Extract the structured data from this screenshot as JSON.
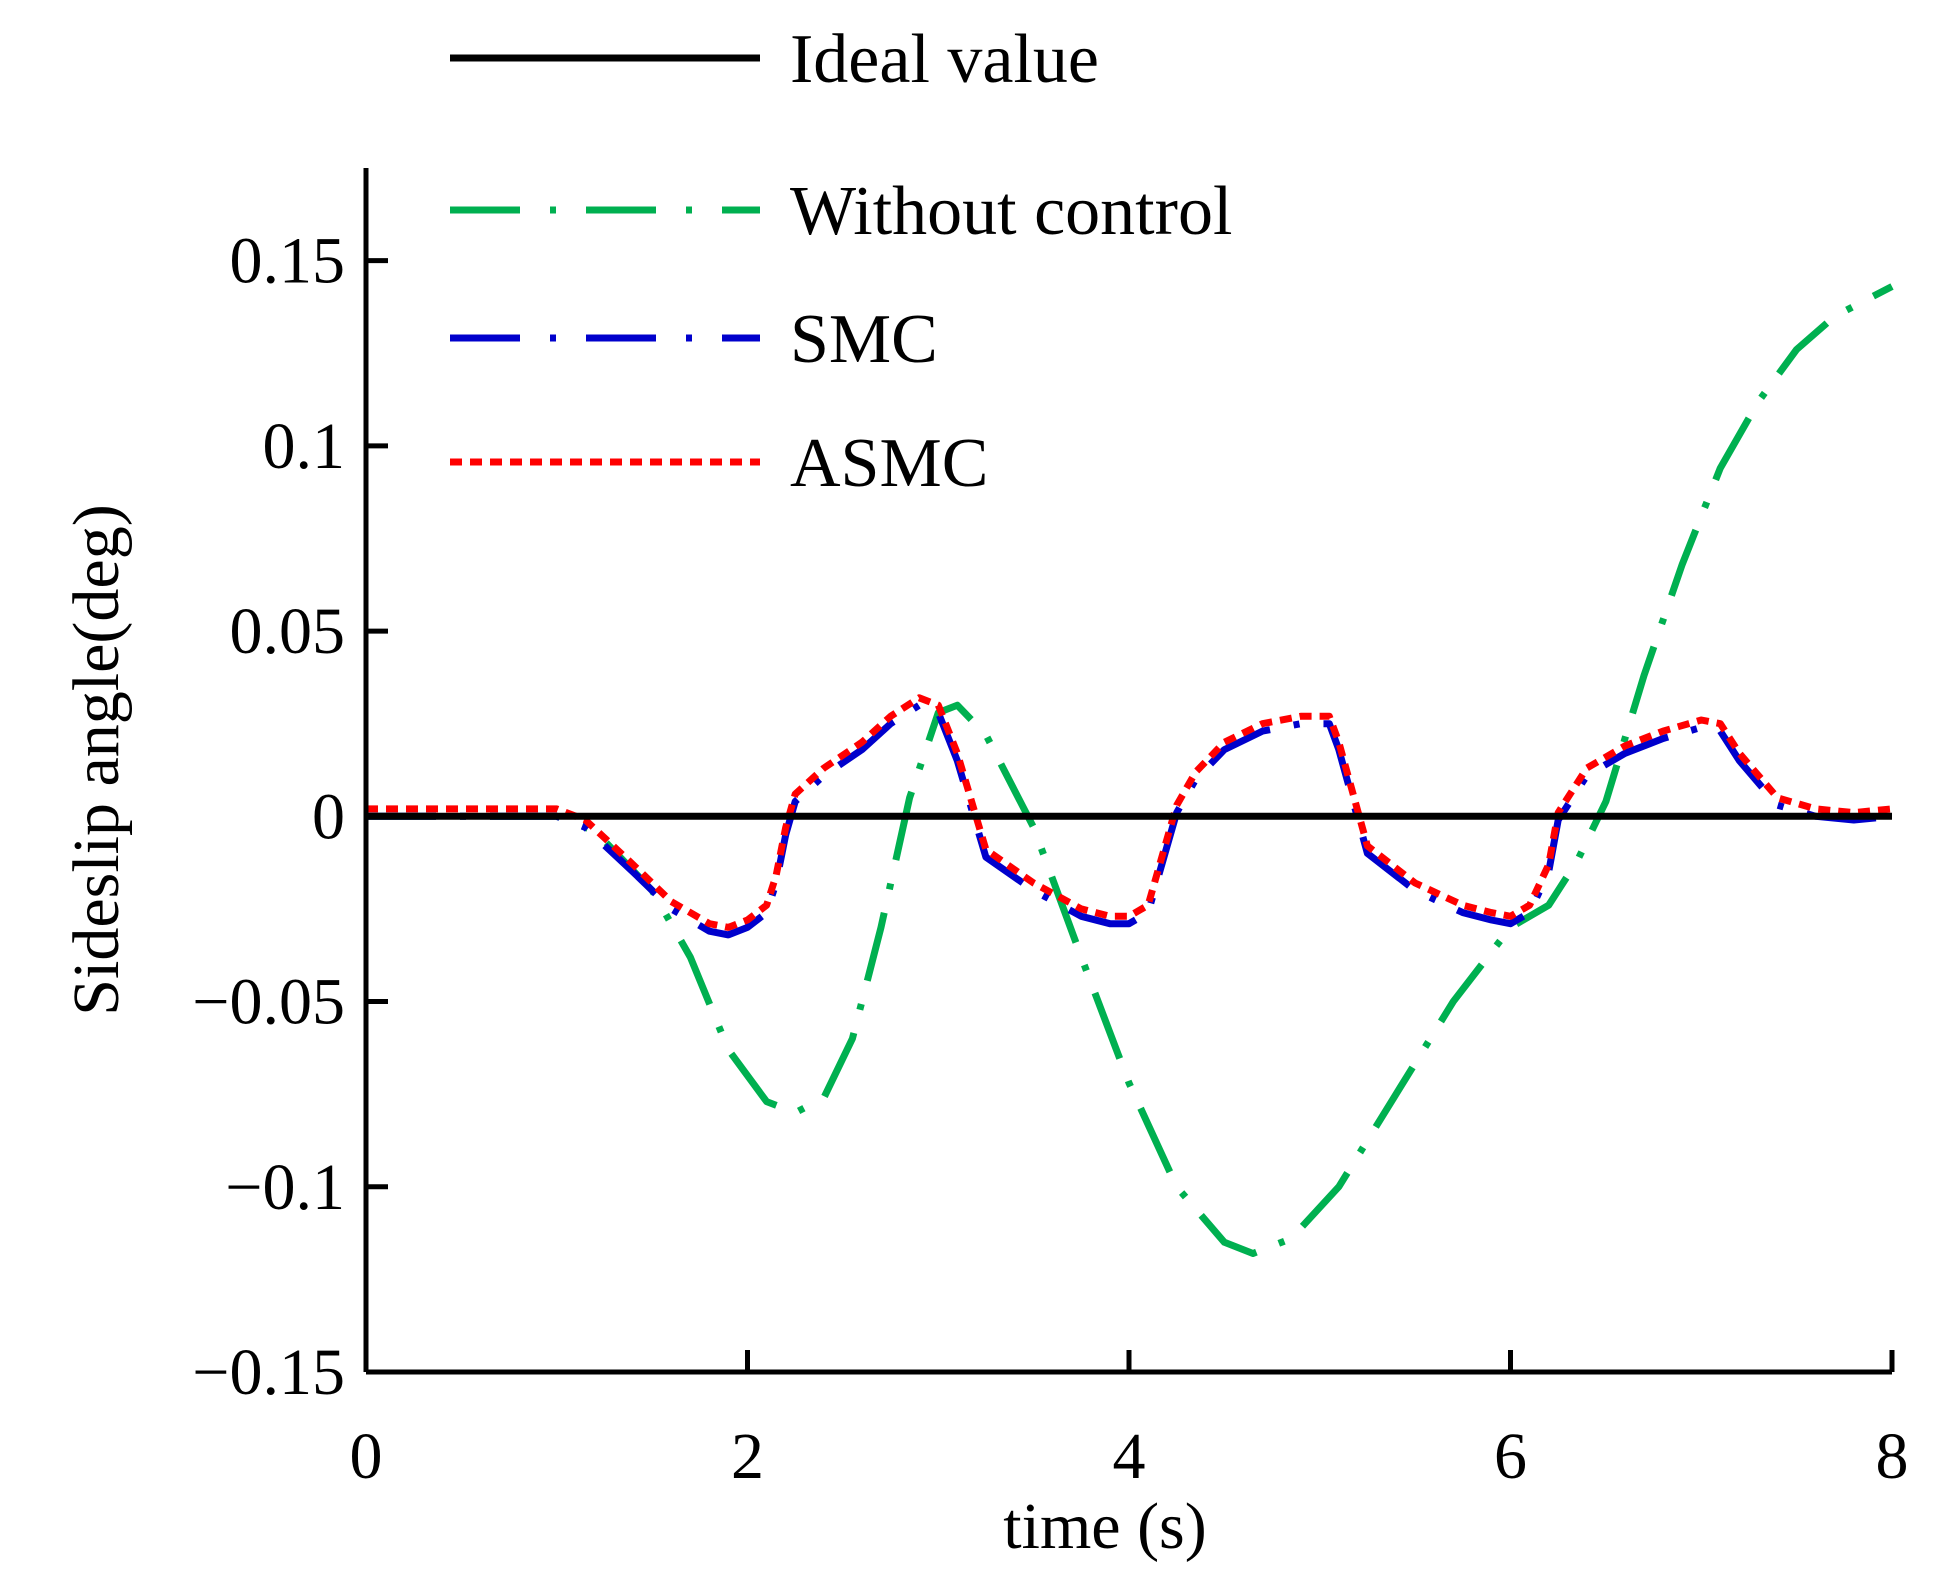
{
  "chart_data": {
    "type": "line",
    "title": "",
    "xlabel": "time (s)",
    "ylabel": "Sideslip angle(deg)",
    "xlim": [
      0,
      8
    ],
    "ylim": [
      -0.15,
      0.175
    ],
    "xticks": [
      0,
      2,
      4,
      6,
      8
    ],
    "xtick_labels": [
      "0",
      "2",
      "4",
      "6",
      "8"
    ],
    "yticks": [
      -0.15,
      -0.1,
      -0.05,
      0,
      0.05,
      0.1,
      0.15
    ],
    "ytick_labels": [
      "−0.15",
      "−0.1",
      "−0.05",
      "0",
      "0.05",
      "0.1",
      "0.15"
    ],
    "grid": false,
    "legend_position": "top-left",
    "series": [
      {
        "name": "Ideal value",
        "color": "#000000",
        "style": "solid",
        "x": [
          0,
          8
        ],
        "y": [
          0,
          0
        ]
      },
      {
        "name": "Without control",
        "color": "#00b050",
        "style": "dashdot",
        "x": [
          0,
          0.5,
          1.0,
          1.2,
          1.5,
          1.7,
          1.9,
          2.1,
          2.25,
          2.4,
          2.55,
          2.7,
          2.85,
          3.0,
          3.1,
          3.25,
          3.5,
          3.75,
          4.0,
          4.25,
          4.5,
          4.65,
          4.85,
          5.1,
          5.4,
          5.7,
          6.0,
          6.2,
          6.35,
          6.5,
          6.7,
          6.9,
          7.1,
          7.3,
          7.5,
          7.7,
          8.0
        ],
        "y": [
          0,
          0,
          0,
          -0.004,
          -0.02,
          -0.038,
          -0.063,
          -0.077,
          -0.08,
          -0.076,
          -0.06,
          -0.03,
          0.005,
          0.028,
          0.03,
          0.022,
          -0.003,
          -0.038,
          -0.072,
          -0.1,
          -0.115,
          -0.118,
          -0.114,
          -0.1,
          -0.075,
          -0.05,
          -0.03,
          -0.024,
          -0.012,
          0.004,
          0.038,
          0.068,
          0.094,
          0.112,
          0.126,
          0.135,
          0.143
        ]
      },
      {
        "name": "SMC",
        "color": "#0000cc",
        "style": "dashdot",
        "x": [
          0,
          0.5,
          1.0,
          1.15,
          1.4,
          1.6,
          1.8,
          1.9,
          2.0,
          2.1,
          2.15,
          2.2,
          2.25,
          2.4,
          2.6,
          2.75,
          2.9,
          3.0,
          3.1,
          3.25,
          3.5,
          3.75,
          3.9,
          4.0,
          4.1,
          4.15,
          4.25,
          4.35,
          4.5,
          4.7,
          4.9,
          5.05,
          5.1,
          5.25,
          5.5,
          5.75,
          5.9,
          6.0,
          6.1,
          6.2,
          6.25,
          6.4,
          6.6,
          6.8,
          7.0,
          7.1,
          7.2,
          7.4,
          7.6,
          7.8,
          8.0
        ],
        "y": [
          0,
          0,
          0,
          -0.003,
          -0.015,
          -0.025,
          -0.031,
          -0.032,
          -0.03,
          -0.026,
          -0.018,
          -0.005,
          0.004,
          0.011,
          0.018,
          0.025,
          0.03,
          0.028,
          0.015,
          -0.011,
          -0.02,
          -0.027,
          -0.029,
          -0.029,
          -0.026,
          -0.017,
          0.001,
          0.01,
          0.018,
          0.023,
          0.025,
          0.025,
          0.018,
          -0.01,
          -0.02,
          -0.026,
          -0.028,
          -0.029,
          -0.026,
          -0.015,
          -0.001,
          0.011,
          0.017,
          0.021,
          0.024,
          0.023,
          0.015,
          0.003,
          0,
          -0.001,
          0
        ]
      },
      {
        "name": "ASMC",
        "color": "#ff0000",
        "style": "dotted",
        "x": [
          0,
          0.5,
          1.0,
          1.15,
          1.4,
          1.6,
          1.8,
          1.9,
          2.0,
          2.1,
          2.15,
          2.2,
          2.25,
          2.4,
          2.6,
          2.75,
          2.9,
          3.0,
          3.1,
          3.25,
          3.5,
          3.75,
          3.9,
          4.0,
          4.1,
          4.15,
          4.25,
          4.35,
          4.5,
          4.7,
          4.9,
          5.05,
          5.1,
          5.25,
          5.5,
          5.75,
          5.9,
          6.0,
          6.1,
          6.2,
          6.25,
          6.4,
          6.6,
          6.8,
          7.0,
          7.1,
          7.2,
          7.4,
          7.6,
          7.8,
          8.0
        ],
        "y": [
          0.002,
          0.002,
          0.002,
          -0.001,
          -0.013,
          -0.023,
          -0.029,
          -0.03,
          -0.028,
          -0.024,
          -0.016,
          -0.003,
          0.006,
          0.013,
          0.02,
          0.027,
          0.032,
          0.03,
          0.017,
          -0.009,
          -0.018,
          -0.025,
          -0.027,
          -0.027,
          -0.024,
          -0.015,
          0.003,
          0.012,
          0.02,
          0.025,
          0.027,
          0.027,
          0.02,
          -0.008,
          -0.018,
          -0.024,
          -0.026,
          -0.027,
          -0.024,
          -0.013,
          0.001,
          0.013,
          0.019,
          0.023,
          0.026,
          0.025,
          0.017,
          0.005,
          0.002,
          0.001,
          0.002
        ]
      }
    ]
  }
}
